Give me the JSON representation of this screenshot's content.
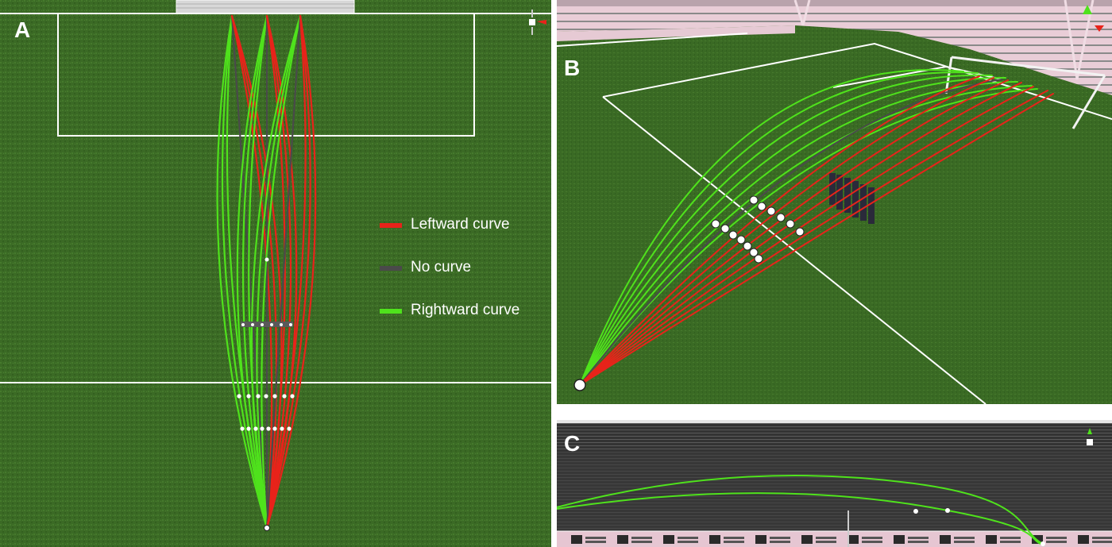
{
  "panels": {
    "a": {
      "letter": "A"
    },
    "b": {
      "letter": "B"
    },
    "c": {
      "letter": "C"
    }
  },
  "legend": [
    {
      "label": "Leftward curve",
      "color": "#e8231a"
    },
    {
      "label": "No curve",
      "color": "#4a4a4a"
    },
    {
      "label": "Rightward curve",
      "color": "#4fe21c"
    }
  ],
  "colors": {
    "grass_dark": "#2e5a1c",
    "grass_light": "#4a7a2c",
    "field_line": "#ffffff",
    "left_curve": "#e8231a",
    "no_curve": "#4a4a4a",
    "right_curve": "#4fe21c",
    "stadium_wall": "#e7c9d3",
    "stand_dark": "#3a3a3a"
  }
}
